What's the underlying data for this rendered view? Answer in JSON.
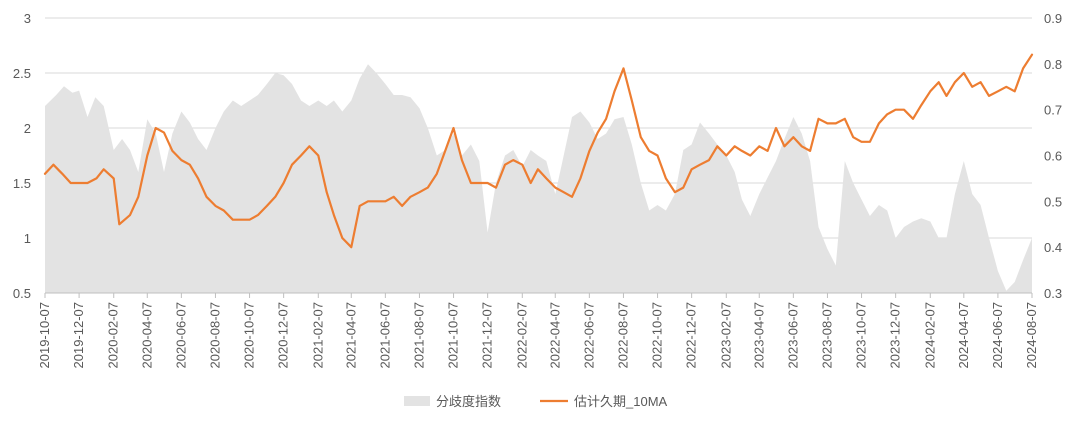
{
  "chart_data": {
    "type": "area+line",
    "title": "",
    "left_axis": {
      "ylim": [
        0.5,
        3
      ],
      "ticks": [
        "0.5",
        "1",
        "1.5",
        "2",
        "2.5",
        "3"
      ]
    },
    "right_axis": {
      "ylim": [
        0.3,
        0.9
      ],
      "ticks": [
        "0.3",
        "0.4",
        "0.5",
        "0.6",
        "0.7",
        "0.8",
        "0.9"
      ]
    },
    "x_ticks": [
      "2019-10-07",
      "2019-12-07",
      "2020-02-07",
      "2020-04-07",
      "2020-06-07",
      "2020-08-07",
      "2020-10-07",
      "2020-12-07",
      "2021-02-07",
      "2021-04-07",
      "2021-06-07",
      "2021-08-07",
      "2021-10-07",
      "2021-12-07",
      "2022-02-07",
      "2022-04-07",
      "2022-06-07",
      "2022-08-07",
      "2022-10-07",
      "2022-12-07",
      "2023-02-07",
      "2023-04-07",
      "2023-06-07",
      "2023-08-07",
      "2023-10-07",
      "2023-12-07",
      "2024-02-07",
      "2024-04-07",
      "2024-06-07",
      "2024-08-07"
    ],
    "grid": true,
    "legend_position": "bottom",
    "colors": {
      "area": "#e3e3e3",
      "line": "#ed7d31",
      "grid": "#d9d9d9"
    },
    "series": [
      {
        "name": "分歧度指数",
        "kind": "area",
        "axis": "left",
        "points": [
          [
            "2019-10-07",
            2.2
          ],
          [
            "2019-10-27",
            2.3
          ],
          [
            "2019-11-10",
            2.38
          ],
          [
            "2019-11-25",
            2.32
          ],
          [
            "2019-12-07",
            2.34
          ],
          [
            "2019-12-22",
            2.1
          ],
          [
            "2020-01-05",
            2.28
          ],
          [
            "2020-01-20",
            2.2
          ],
          [
            "2020-02-07",
            1.8
          ],
          [
            "2020-02-22",
            1.9
          ],
          [
            "2020-03-07",
            1.8
          ],
          [
            "2020-03-22",
            1.6
          ],
          [
            "2020-04-07",
            2.08
          ],
          [
            "2020-04-22",
            1.95
          ],
          [
            "2020-05-07",
            1.6
          ],
          [
            "2020-05-22",
            1.95
          ],
          [
            "2020-06-07",
            2.15
          ],
          [
            "2020-06-22",
            2.05
          ],
          [
            "2020-07-07",
            1.9
          ],
          [
            "2020-07-22",
            1.8
          ],
          [
            "2020-08-07",
            2.0
          ],
          [
            "2020-08-22",
            2.15
          ],
          [
            "2020-09-07",
            2.25
          ],
          [
            "2020-09-22",
            2.2
          ],
          [
            "2020-10-07",
            2.25
          ],
          [
            "2020-10-22",
            2.3
          ],
          [
            "2020-11-07",
            2.4
          ],
          [
            "2020-11-22",
            2.5
          ],
          [
            "2020-12-07",
            2.48
          ],
          [
            "2020-12-22",
            2.4
          ],
          [
            "2021-01-07",
            2.25
          ],
          [
            "2021-01-22",
            2.2
          ],
          [
            "2021-02-07",
            2.25
          ],
          [
            "2021-02-22",
            2.2
          ],
          [
            "2021-03-07",
            2.25
          ],
          [
            "2021-03-22",
            2.15
          ],
          [
            "2021-04-07",
            2.25
          ],
          [
            "2021-04-22",
            2.45
          ],
          [
            "2021-05-07",
            2.58
          ],
          [
            "2021-05-22",
            2.5
          ],
          [
            "2021-06-07",
            2.4
          ],
          [
            "2021-06-22",
            2.3
          ],
          [
            "2021-07-07",
            2.3
          ],
          [
            "2021-07-22",
            2.28
          ],
          [
            "2021-08-07",
            2.18
          ],
          [
            "2021-08-22",
            2.0
          ],
          [
            "2021-09-07",
            1.75
          ],
          [
            "2021-09-22",
            1.8
          ],
          [
            "2021-10-07",
            1.95
          ],
          [
            "2021-10-22",
            1.75
          ],
          [
            "2021-11-07",
            1.85
          ],
          [
            "2021-11-22",
            1.7
          ],
          [
            "2021-12-07",
            1.05
          ],
          [
            "2021-12-22",
            1.5
          ],
          [
            "2022-01-07",
            1.75
          ],
          [
            "2022-01-22",
            1.8
          ],
          [
            "2022-02-07",
            1.65
          ],
          [
            "2022-02-22",
            1.8
          ],
          [
            "2022-03-07",
            1.75
          ],
          [
            "2022-03-22",
            1.7
          ],
          [
            "2022-04-07",
            1.4
          ],
          [
            "2022-04-22",
            1.75
          ],
          [
            "2022-05-07",
            2.1
          ],
          [
            "2022-05-22",
            2.15
          ],
          [
            "2022-06-07",
            2.05
          ],
          [
            "2022-06-22",
            1.9
          ],
          [
            "2022-07-07",
            1.95
          ],
          [
            "2022-07-22",
            2.08
          ],
          [
            "2022-08-07",
            2.1
          ],
          [
            "2022-08-22",
            1.85
          ],
          [
            "2022-09-07",
            1.5
          ],
          [
            "2022-09-22",
            1.25
          ],
          [
            "2022-10-07",
            1.3
          ],
          [
            "2022-10-22",
            1.25
          ],
          [
            "2022-11-07",
            1.4
          ],
          [
            "2022-11-22",
            1.8
          ],
          [
            "2022-12-07",
            1.85
          ],
          [
            "2022-12-22",
            2.05
          ],
          [
            "2023-01-07",
            1.95
          ],
          [
            "2023-01-22",
            1.85
          ],
          [
            "2023-02-07",
            1.75
          ],
          [
            "2023-02-22",
            1.6
          ],
          [
            "2023-03-07",
            1.35
          ],
          [
            "2023-03-22",
            1.2
          ],
          [
            "2023-04-07",
            1.4
          ],
          [
            "2023-04-22",
            1.55
          ],
          [
            "2023-05-07",
            1.7
          ],
          [
            "2023-05-22",
            1.9
          ],
          [
            "2023-06-07",
            2.1
          ],
          [
            "2023-06-22",
            1.95
          ],
          [
            "2023-07-07",
            1.7
          ],
          [
            "2023-07-22",
            1.1
          ],
          [
            "2023-08-07",
            0.9
          ],
          [
            "2023-08-22",
            0.75
          ],
          [
            "2023-09-07",
            1.7
          ],
          [
            "2023-09-22",
            1.5
          ],
          [
            "2023-10-07",
            1.35
          ],
          [
            "2023-10-22",
            1.2
          ],
          [
            "2023-11-07",
            1.3
          ],
          [
            "2023-11-22",
            1.25
          ],
          [
            "2023-12-07",
            1.0
          ],
          [
            "2023-12-22",
            1.1
          ],
          [
            "2024-01-07",
            1.15
          ],
          [
            "2024-01-22",
            1.18
          ],
          [
            "2024-02-07",
            1.15
          ],
          [
            "2024-02-22",
            1.0
          ],
          [
            "2024-03-07",
            1.0
          ],
          [
            "2024-03-22",
            1.4
          ],
          [
            "2024-04-07",
            1.7
          ],
          [
            "2024-04-22",
            1.4
          ],
          [
            "2024-05-07",
            1.3
          ],
          [
            "2024-05-22",
            1.0
          ],
          [
            "2024-06-07",
            0.7
          ],
          [
            "2024-06-22",
            0.52
          ],
          [
            "2024-07-07",
            0.6
          ],
          [
            "2024-07-22",
            0.8
          ],
          [
            "2024-08-07",
            1.0
          ]
        ]
      },
      {
        "name": "估计久期_10MA",
        "kind": "line",
        "axis": "right",
        "points": [
          [
            "2019-10-07",
            0.56
          ],
          [
            "2019-10-22",
            0.58
          ],
          [
            "2019-11-07",
            0.56
          ],
          [
            "2019-11-22",
            0.54
          ],
          [
            "2019-12-07",
            0.54
          ],
          [
            "2019-12-22",
            0.54
          ],
          [
            "2020-01-07",
            0.55
          ],
          [
            "2020-01-20",
            0.57
          ],
          [
            "2020-02-07",
            0.55
          ],
          [
            "2020-02-17",
            0.45
          ],
          [
            "2020-03-07",
            0.47
          ],
          [
            "2020-03-22",
            0.51
          ],
          [
            "2020-04-07",
            0.6
          ],
          [
            "2020-04-22",
            0.66
          ],
          [
            "2020-05-07",
            0.65
          ],
          [
            "2020-05-22",
            0.61
          ],
          [
            "2020-06-07",
            0.59
          ],
          [
            "2020-06-22",
            0.58
          ],
          [
            "2020-07-07",
            0.55
          ],
          [
            "2020-07-22",
            0.51
          ],
          [
            "2020-08-07",
            0.49
          ],
          [
            "2020-08-22",
            0.48
          ],
          [
            "2020-09-07",
            0.46
          ],
          [
            "2020-09-22",
            0.46
          ],
          [
            "2020-10-07",
            0.46
          ],
          [
            "2020-10-22",
            0.47
          ],
          [
            "2020-11-07",
            0.49
          ],
          [
            "2020-11-22",
            0.51
          ],
          [
            "2020-12-07",
            0.54
          ],
          [
            "2020-12-22",
            0.58
          ],
          [
            "2021-01-07",
            0.6
          ],
          [
            "2021-01-22",
            0.62
          ],
          [
            "2021-02-07",
            0.6
          ],
          [
            "2021-02-22",
            0.52
          ],
          [
            "2021-03-07",
            0.47
          ],
          [
            "2021-03-22",
            0.42
          ],
          [
            "2021-04-07",
            0.4
          ],
          [
            "2021-04-22",
            0.49
          ],
          [
            "2021-05-07",
            0.5
          ],
          [
            "2021-05-22",
            0.5
          ],
          [
            "2021-06-07",
            0.5
          ],
          [
            "2021-06-22",
            0.51
          ],
          [
            "2021-07-07",
            0.49
          ],
          [
            "2021-07-22",
            0.51
          ],
          [
            "2021-08-07",
            0.52
          ],
          [
            "2021-08-22",
            0.53
          ],
          [
            "2021-09-07",
            0.56
          ],
          [
            "2021-09-22",
            0.61
          ],
          [
            "2021-10-07",
            0.66
          ],
          [
            "2021-10-22",
            0.59
          ],
          [
            "2021-11-07",
            0.54
          ],
          [
            "2021-11-22",
            0.54
          ],
          [
            "2021-12-07",
            0.54
          ],
          [
            "2021-12-22",
            0.53
          ],
          [
            "2022-01-07",
            0.58
          ],
          [
            "2022-01-22",
            0.59
          ],
          [
            "2022-02-07",
            0.58
          ],
          [
            "2022-02-22",
            0.54
          ],
          [
            "2022-03-07",
            0.57
          ],
          [
            "2022-03-22",
            0.55
          ],
          [
            "2022-04-07",
            0.53
          ],
          [
            "2022-04-22",
            0.52
          ],
          [
            "2022-05-07",
            0.51
          ],
          [
            "2022-05-22",
            0.55
          ],
          [
            "2022-06-07",
            0.61
          ],
          [
            "2022-06-22",
            0.65
          ],
          [
            "2022-07-07",
            0.68
          ],
          [
            "2022-07-22",
            0.74
          ],
          [
            "2022-08-07",
            0.79
          ],
          [
            "2022-08-22",
            0.72
          ],
          [
            "2022-09-07",
            0.64
          ],
          [
            "2022-09-22",
            0.61
          ],
          [
            "2022-10-07",
            0.6
          ],
          [
            "2022-10-22",
            0.55
          ],
          [
            "2022-11-07",
            0.52
          ],
          [
            "2022-11-22",
            0.53
          ],
          [
            "2022-12-07",
            0.57
          ],
          [
            "2022-12-22",
            0.58
          ],
          [
            "2023-01-07",
            0.59
          ],
          [
            "2023-01-22",
            0.62
          ],
          [
            "2023-02-07",
            0.6
          ],
          [
            "2023-02-22",
            0.62
          ],
          [
            "2023-03-07",
            0.61
          ],
          [
            "2023-03-22",
            0.6
          ],
          [
            "2023-04-07",
            0.62
          ],
          [
            "2023-04-22",
            0.61
          ],
          [
            "2023-05-07",
            0.66
          ],
          [
            "2023-05-22",
            0.62
          ],
          [
            "2023-06-07",
            0.64
          ],
          [
            "2023-06-22",
            0.62
          ],
          [
            "2023-07-07",
            0.61
          ],
          [
            "2023-07-22",
            0.68
          ],
          [
            "2023-08-07",
            0.67
          ],
          [
            "2023-08-22",
            0.67
          ],
          [
            "2023-09-07",
            0.68
          ],
          [
            "2023-09-22",
            0.64
          ],
          [
            "2023-10-07",
            0.63
          ],
          [
            "2023-10-22",
            0.63
          ],
          [
            "2023-11-07",
            0.67
          ],
          [
            "2023-11-22",
            0.69
          ],
          [
            "2023-12-07",
            0.7
          ],
          [
            "2023-12-22",
            0.7
          ],
          [
            "2024-01-07",
            0.68
          ],
          [
            "2024-01-22",
            0.71
          ],
          [
            "2024-02-07",
            0.74
          ],
          [
            "2024-02-22",
            0.76
          ],
          [
            "2024-03-07",
            0.73
          ],
          [
            "2024-03-22",
            0.76
          ],
          [
            "2024-04-07",
            0.78
          ],
          [
            "2024-04-22",
            0.75
          ],
          [
            "2024-05-07",
            0.76
          ],
          [
            "2024-05-22",
            0.73
          ],
          [
            "2024-06-07",
            0.74
          ],
          [
            "2024-06-22",
            0.75
          ],
          [
            "2024-07-07",
            0.74
          ],
          [
            "2024-07-22",
            0.79
          ],
          [
            "2024-08-07",
            0.82
          ]
        ]
      }
    ]
  }
}
